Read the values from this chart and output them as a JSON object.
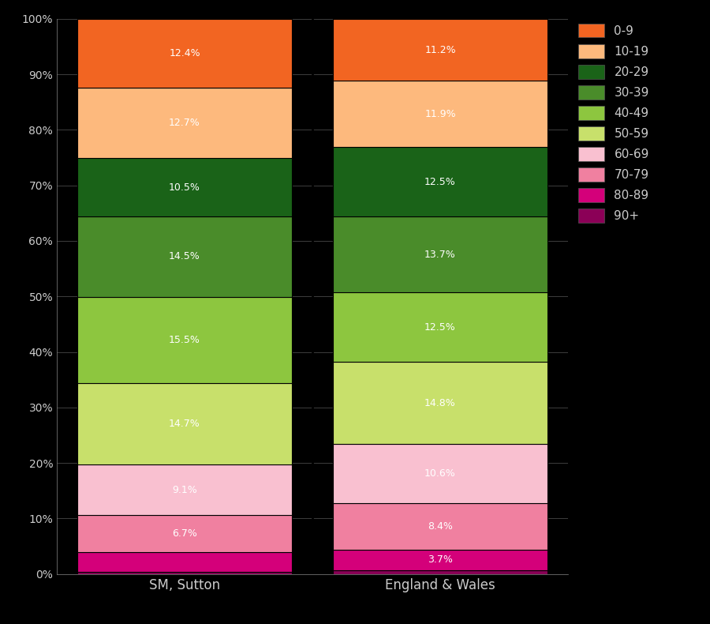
{
  "categories": [
    "SM, Sutton",
    "England & Wales"
  ],
  "age_groups_bottom_to_top": [
    "90+",
    "80-89",
    "70-79",
    "60-69",
    "50-59",
    "40-49",
    "30-39",
    "20-29",
    "10-19",
    "0-9"
  ],
  "colors": {
    "0-9": "#f26522",
    "10-19": "#fdb97d",
    "20-29": "#1a6318",
    "30-39": "#4a8c2a",
    "40-49": "#8dc63f",
    "50-59": "#c8e06b",
    "60-69": "#f9c0d0",
    "70-79": "#f080a0",
    "80-89": "#d4007a",
    "90+": "#8b0057"
  },
  "values": {
    "SM, Sutton": {
      "0-9": 12.4,
      "10-19": 12.7,
      "20-29": 10.5,
      "30-39": 14.5,
      "40-49": 15.5,
      "50-59": 14.7,
      "60-69": 9.1,
      "70-79": 6.7,
      "80-89": 3.5,
      "90+": 0.4
    },
    "England & Wales": {
      "0-9": 11.2,
      "10-19": 11.9,
      "20-29": 12.5,
      "30-39": 13.7,
      "40-49": 12.5,
      "50-59": 14.8,
      "60-69": 10.6,
      "70-79": 8.4,
      "80-89": 3.7,
      "90+": 0.7
    }
  },
  "show_labels": {
    "SM, Sutton": {
      "0-9": true,
      "10-19": true,
      "20-29": true,
      "30-39": true,
      "40-49": true,
      "50-59": true,
      "60-69": true,
      "70-79": true,
      "80-89": false,
      "90+": false
    },
    "England & Wales": {
      "0-9": true,
      "10-19": true,
      "20-29": true,
      "30-39": true,
      "40-49": true,
      "50-59": true,
      "60-69": true,
      "70-79": true,
      "80-89": true,
      "90+": false
    }
  },
  "background_color": "#000000",
  "text_color": "#cccccc",
  "label_color": "#ffffff",
  "legend_order": [
    "0-9",
    "10-19",
    "20-29",
    "30-39",
    "40-49",
    "50-59",
    "60-69",
    "70-79",
    "80-89",
    "90+"
  ]
}
